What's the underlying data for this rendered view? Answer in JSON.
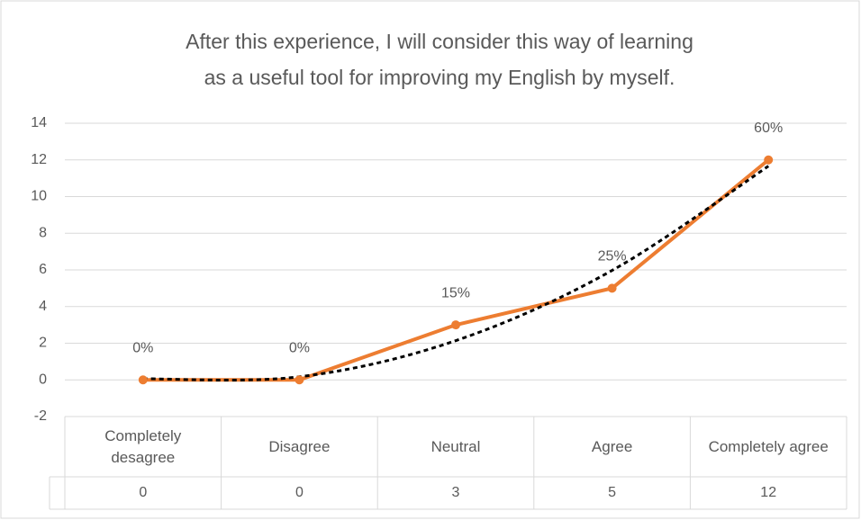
{
  "chart_data": {
    "type": "line",
    "title": [
      "After this experience, I will consider this way of learning",
      "as a useful tool for improving my English by myself."
    ],
    "categories": [
      "Completely desagree",
      "Disagree",
      "Neutral",
      "Agree",
      "Completely agree"
    ],
    "series": [
      {
        "color": "#ed7d31",
        "values": [
          0,
          0,
          3,
          5,
          12
        ],
        "value_labels": [
          "0%",
          "0%",
          "15%",
          "25%",
          "60%"
        ]
      }
    ],
    "trendline": {
      "color": "#000000",
      "values": [
        0.06,
        0.17,
        2.14,
        5.97,
        11.66
      ]
    },
    "ylim": [
      -2,
      14
    ],
    "yticks": [
      -2,
      0,
      2,
      4,
      6,
      8,
      10,
      12,
      14
    ],
    "grid": true,
    "data_table": true
  }
}
